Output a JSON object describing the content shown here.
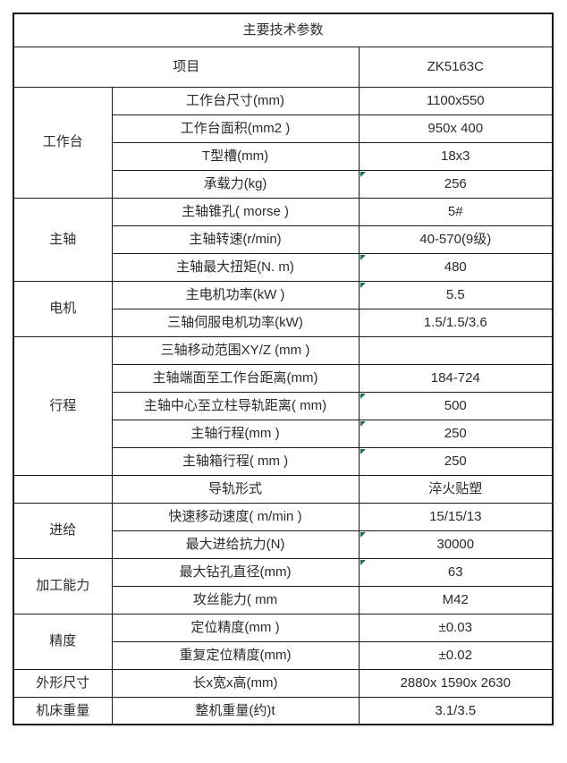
{
  "colors": {
    "border": "#1a1a1a",
    "text": "#2b2b2b",
    "excel_flag_green": "#1e7145",
    "background": "#ffffff"
  },
  "table": {
    "title": "主要技术参数",
    "header": {
      "item_label": "项目",
      "model": "ZK5163C"
    },
    "groups": [
      {
        "name": "工作台",
        "rows": [
          {
            "param": "工作台尺寸(mm)",
            "value": "1100x550",
            "flag": false
          },
          {
            "param": "工作台面积(mm2 )",
            "value": "950x 400",
            "flag": false
          },
          {
            "param": "T型槽(mm)",
            "value": "18x3",
            "flag": false
          },
          {
            "param": "承载力(kg)",
            "value": "256",
            "flag": true
          }
        ]
      },
      {
        "name": "主轴",
        "rows": [
          {
            "param": "主轴锥孔( morse )",
            "value": "5#",
            "flag": false
          },
          {
            "param": "主轴转速(r/min)",
            "value": "40-570(9级)",
            "flag": false
          },
          {
            "param": "主轴最大扭矩(N. m)",
            "value": "480",
            "flag": true
          }
        ]
      },
      {
        "name": "电机",
        "rows": [
          {
            "param": "主电机功率(kW )",
            "value": "5.5",
            "flag": true
          },
          {
            "param": "三轴伺服电机功率(kW)",
            "value": "1.5/1.5/3.6",
            "flag": false
          }
        ]
      },
      {
        "name": "行程",
        "rows": [
          {
            "param": "三轴移动范围XY/Z (mm )",
            "value": "",
            "flag": false
          },
          {
            "param": "主轴端面至工作台距离(mm)",
            "value": "184-724",
            "flag": false
          },
          {
            "param": "主轴中心至立柱导轨距离( mm)",
            "value": "500",
            "flag": true
          },
          {
            "param": "主轴行程(mm )",
            "value": "250",
            "flag": true
          },
          {
            "param": "主轴箱行程( mm )",
            "value": "250",
            "flag": true
          }
        ]
      },
      {
        "name": "",
        "rows": [
          {
            "param": "导轨形式",
            "value": "淬火贴塑",
            "flag": false
          }
        ]
      },
      {
        "name": "进给",
        "rows": [
          {
            "param": "快速移动速度( m/min )",
            "value": "15/15/13",
            "flag": false
          },
          {
            "param": "最大进给抗力(N)",
            "value": "30000",
            "flag": true
          }
        ]
      },
      {
        "name": "加工能力",
        "rows": [
          {
            "param": "最大钻孔直径(mm)",
            "value": "63",
            "flag": true
          },
          {
            "param": "攻丝能力( mm",
            "value": "M42",
            "flag": false
          }
        ]
      },
      {
        "name": "精度",
        "rows": [
          {
            "param": "定位精度(mm )",
            "value": "±0.03",
            "flag": false
          },
          {
            "param": "重复定位精度(mm)",
            "value": "±0.02",
            "flag": false
          }
        ]
      },
      {
        "name": "外形尺寸",
        "rows": [
          {
            "param": "长x宽x高(mm)",
            "value": "2880x 1590x 2630",
            "flag": false
          }
        ]
      },
      {
        "name": "机床重量",
        "rows": [
          {
            "param": "整机重量(约)t",
            "value": "3.1/3.5",
            "flag": false
          }
        ]
      }
    ]
  }
}
